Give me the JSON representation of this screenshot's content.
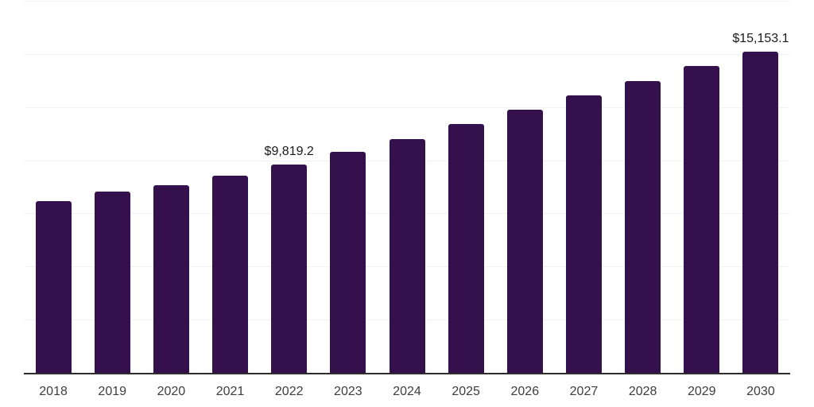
{
  "colors": {
    "background": "#ffffff",
    "bar": "#34114d",
    "gridline": "#f2f2f2",
    "axis_line": "#2d2d2d",
    "tick_text": "#3d3d3d",
    "data_label_text": "#1a1a1a"
  },
  "chart_data": {
    "type": "bar",
    "categories": [
      "2018",
      "2019",
      "2020",
      "2021",
      "2022",
      "2023",
      "2024",
      "2025",
      "2026",
      "2027",
      "2028",
      "2029",
      "2030"
    ],
    "values": [
      8120,
      8550,
      8870,
      9320,
      9819.2,
      10430,
      11030,
      11750,
      12410,
      13070,
      13770,
      14470,
      15153.1
    ],
    "data_labels": {
      "2022": "$9,819.2",
      "2030": "$15,153.1"
    },
    "title": "",
    "xlabel": "",
    "ylabel": "",
    "ylim": [
      0,
      17500
    ],
    "gridline_step": 2500,
    "grid": true,
    "legend": false
  }
}
